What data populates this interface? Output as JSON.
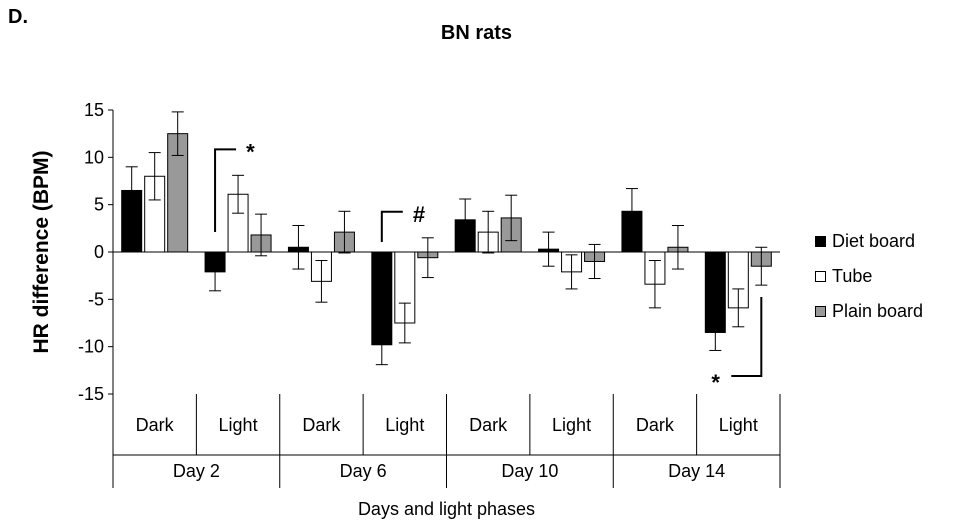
{
  "panel_label": "D.",
  "chart_data": {
    "type": "bar",
    "title": "BN rats",
    "ylabel": "HR difference (BPM)",
    "xlabel": "Days and light phases",
    "ylim": [
      -15,
      15
    ],
    "yticks": [
      "15",
      "10",
      "5",
      "0",
      "-5",
      "-10",
      "-15"
    ],
    "ytick_values": [
      15,
      10,
      5,
      0,
      -5,
      -10,
      -15
    ],
    "days": [
      "Day 2",
      "Day 6",
      "Day 10",
      "Day 14"
    ],
    "categories": [
      "Dark",
      "Light",
      "Dark",
      "Light",
      "Dark",
      "Light",
      "Dark",
      "Light"
    ],
    "series": [
      {
        "name": "Diet board",
        "color": "#000000",
        "values": [
          6.5,
          -2.1,
          0.5,
          -9.8,
          3.4,
          0.3,
          4.3,
          -8.5
        ],
        "errors": [
          2.5,
          2.0,
          2.3,
          2.1,
          2.2,
          1.8,
          2.4,
          1.9
        ]
      },
      {
        "name": "Tube",
        "color": "#ffffff",
        "values": [
          8.0,
          6.1,
          -3.1,
          -7.5,
          2.1,
          -2.1,
          -3.4,
          -5.9
        ],
        "errors": [
          2.5,
          2.0,
          2.2,
          2.1,
          2.2,
          1.8,
          2.5,
          2.0
        ]
      },
      {
        "name": "Plain board",
        "color": "#999999",
        "values": [
          12.5,
          1.8,
          2.1,
          -0.6,
          3.6,
          -1.0,
          0.5,
          -1.5
        ],
        "errors": [
          2.3,
          2.2,
          2.2,
          2.1,
          2.4,
          1.8,
          2.3,
          2.0
        ]
      }
    ],
    "annotations": [
      {
        "text": "*",
        "category_index": 1
      },
      {
        "text": "#",
        "category_index": 3
      },
      {
        "text": "*",
        "category_index": 7
      }
    ],
    "legend_position": "right",
    "grid": false
  }
}
